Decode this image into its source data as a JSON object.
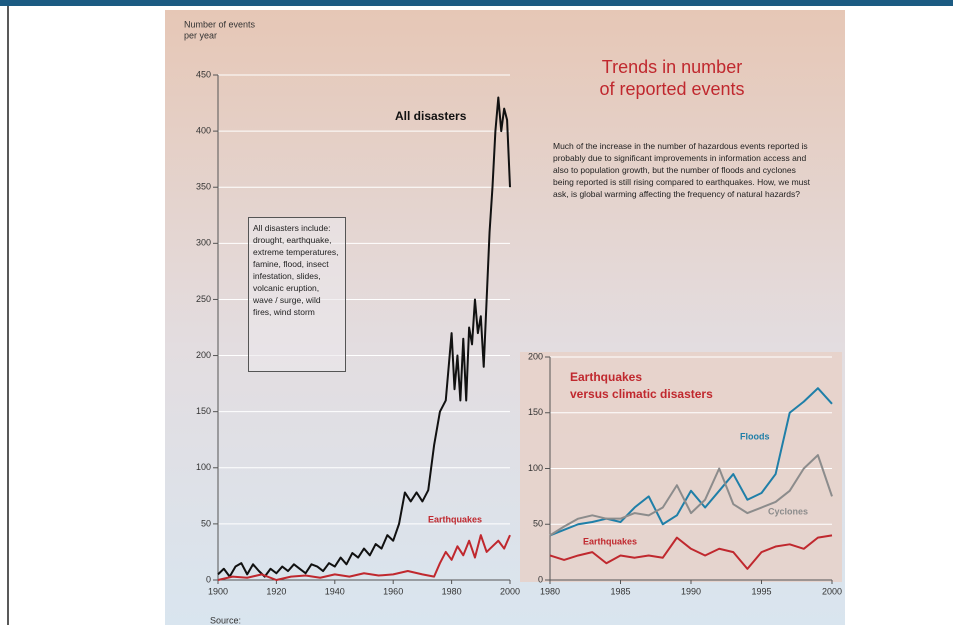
{
  "chart_data": [
    {
      "type": "line",
      "title": [
        "Trends in number",
        "of reported events"
      ],
      "ylabel": [
        "Number of events",
        "per year"
      ],
      "description": "Much of the increase in the number of hazardous events reported is probably due to significant improvements in information access and also to population growth, but the number of floods and cyclones being reported is still rising compared to earthquakes. How, we must ask, is global warming affecting the frequency of natural hazards?",
      "note": "All disasters include: drought, earthquake, extreme temperatures, famine, flood, insect infestation, slides, volcanic eruption, wave / surge, wild fires, wind storm",
      "source": "Source:",
      "xlim": [
        1900,
        2000
      ],
      "xticks": [
        1900,
        1920,
        1940,
        1960,
        1980,
        2000
      ],
      "ylim": [
        0,
        450
      ],
      "yticks": [
        0,
        50,
        100,
        150,
        200,
        250,
        300,
        350,
        400,
        450
      ],
      "grid": true,
      "series": [
        {
          "name": "All disasters",
          "color": "#111111",
          "x": [
            1900,
            1902,
            1904,
            1906,
            1908,
            1910,
            1912,
            1914,
            1916,
            1918,
            1920,
            1922,
            1924,
            1926,
            1928,
            1930,
            1932,
            1934,
            1936,
            1938,
            1940,
            1942,
            1944,
            1946,
            1948,
            1950,
            1952,
            1954,
            1956,
            1958,
            1960,
            1962,
            1964,
            1966,
            1968,
            1970,
            1972,
            1974,
            1976,
            1978,
            1980,
            1981,
            1982,
            1983,
            1984,
            1985,
            1986,
            1987,
            1988,
            1989,
            1990,
            1991,
            1992,
            1993,
            1994,
            1995,
            1996,
            1997,
            1998,
            1999,
            2000
          ],
          "values": [
            5,
            10,
            3,
            12,
            15,
            5,
            14,
            8,
            3,
            10,
            6,
            12,
            8,
            14,
            10,
            6,
            14,
            12,
            8,
            15,
            12,
            20,
            14,
            24,
            20,
            28,
            22,
            32,
            28,
            40,
            35,
            50,
            78,
            70,
            78,
            70,
            80,
            120,
            150,
            160,
            220,
            170,
            200,
            160,
            215,
            160,
            225,
            210,
            250,
            220,
            235,
            190,
            250,
            310,
            350,
            400,
            430,
            400,
            420,
            410,
            350
          ]
        },
        {
          "name": "Earthquakes",
          "color": "#c0282e",
          "x": [
            1900,
            1905,
            1910,
            1915,
            1920,
            1925,
            1930,
            1935,
            1940,
            1945,
            1950,
            1955,
            1960,
            1965,
            1970,
            1974,
            1976,
            1978,
            1980,
            1982,
            1984,
            1986,
            1988,
            1990,
            1992,
            1994,
            1996,
            1998,
            2000
          ],
          "values": [
            0,
            3,
            2,
            5,
            0,
            3,
            4,
            2,
            5,
            3,
            6,
            4,
            5,
            8,
            5,
            3,
            15,
            25,
            18,
            30,
            22,
            35,
            20,
            40,
            25,
            30,
            35,
            28,
            40
          ]
        }
      ]
    },
    {
      "type": "line",
      "title": [
        "Earthquakes",
        "versus climatic disasters"
      ],
      "xlim": [
        1980,
        2000
      ],
      "xticks": [
        1980,
        1985,
        1990,
        1995,
        2000
      ],
      "ylim": [
        0,
        200
      ],
      "yticks": [
        0,
        50,
        100,
        150,
        200
      ],
      "grid": true,
      "series": [
        {
          "name": "Floods",
          "color": "#1f7fa8",
          "x": [
            1980,
            1981,
            1982,
            1983,
            1984,
            1985,
            1986,
            1987,
            1988,
            1989,
            1990,
            1991,
            1992,
            1993,
            1994,
            1995,
            1996,
            1997,
            1998,
            1999,
            2000
          ],
          "values": [
            40,
            45,
            50,
            52,
            55,
            52,
            65,
            75,
            50,
            58,
            80,
            65,
            80,
            95,
            72,
            78,
            95,
            150,
            160,
            172,
            158
          ]
        },
        {
          "name": "Cyclones",
          "color": "#8c8c8c",
          "x": [
            1980,
            1981,
            1982,
            1983,
            1984,
            1985,
            1986,
            1987,
            1988,
            1989,
            1990,
            1991,
            1992,
            1993,
            1994,
            1995,
            1996,
            1997,
            1998,
            1999,
            2000
          ],
          "values": [
            40,
            48,
            55,
            58,
            55,
            55,
            60,
            58,
            65,
            85,
            60,
            72,
            100,
            68,
            60,
            65,
            70,
            80,
            100,
            112,
            75
          ]
        },
        {
          "name": "Earthquakes",
          "color": "#c0282e",
          "x": [
            1980,
            1981,
            1982,
            1983,
            1984,
            1985,
            1986,
            1987,
            1988,
            1989,
            1990,
            1991,
            1992,
            1993,
            1994,
            1995,
            1996,
            1997,
            1998,
            1999,
            2000
          ],
          "values": [
            22,
            18,
            22,
            25,
            15,
            22,
            20,
            22,
            20,
            38,
            28,
            22,
            28,
            25,
            10,
            25,
            30,
            32,
            28,
            38,
            40
          ]
        }
      ]
    }
  ]
}
